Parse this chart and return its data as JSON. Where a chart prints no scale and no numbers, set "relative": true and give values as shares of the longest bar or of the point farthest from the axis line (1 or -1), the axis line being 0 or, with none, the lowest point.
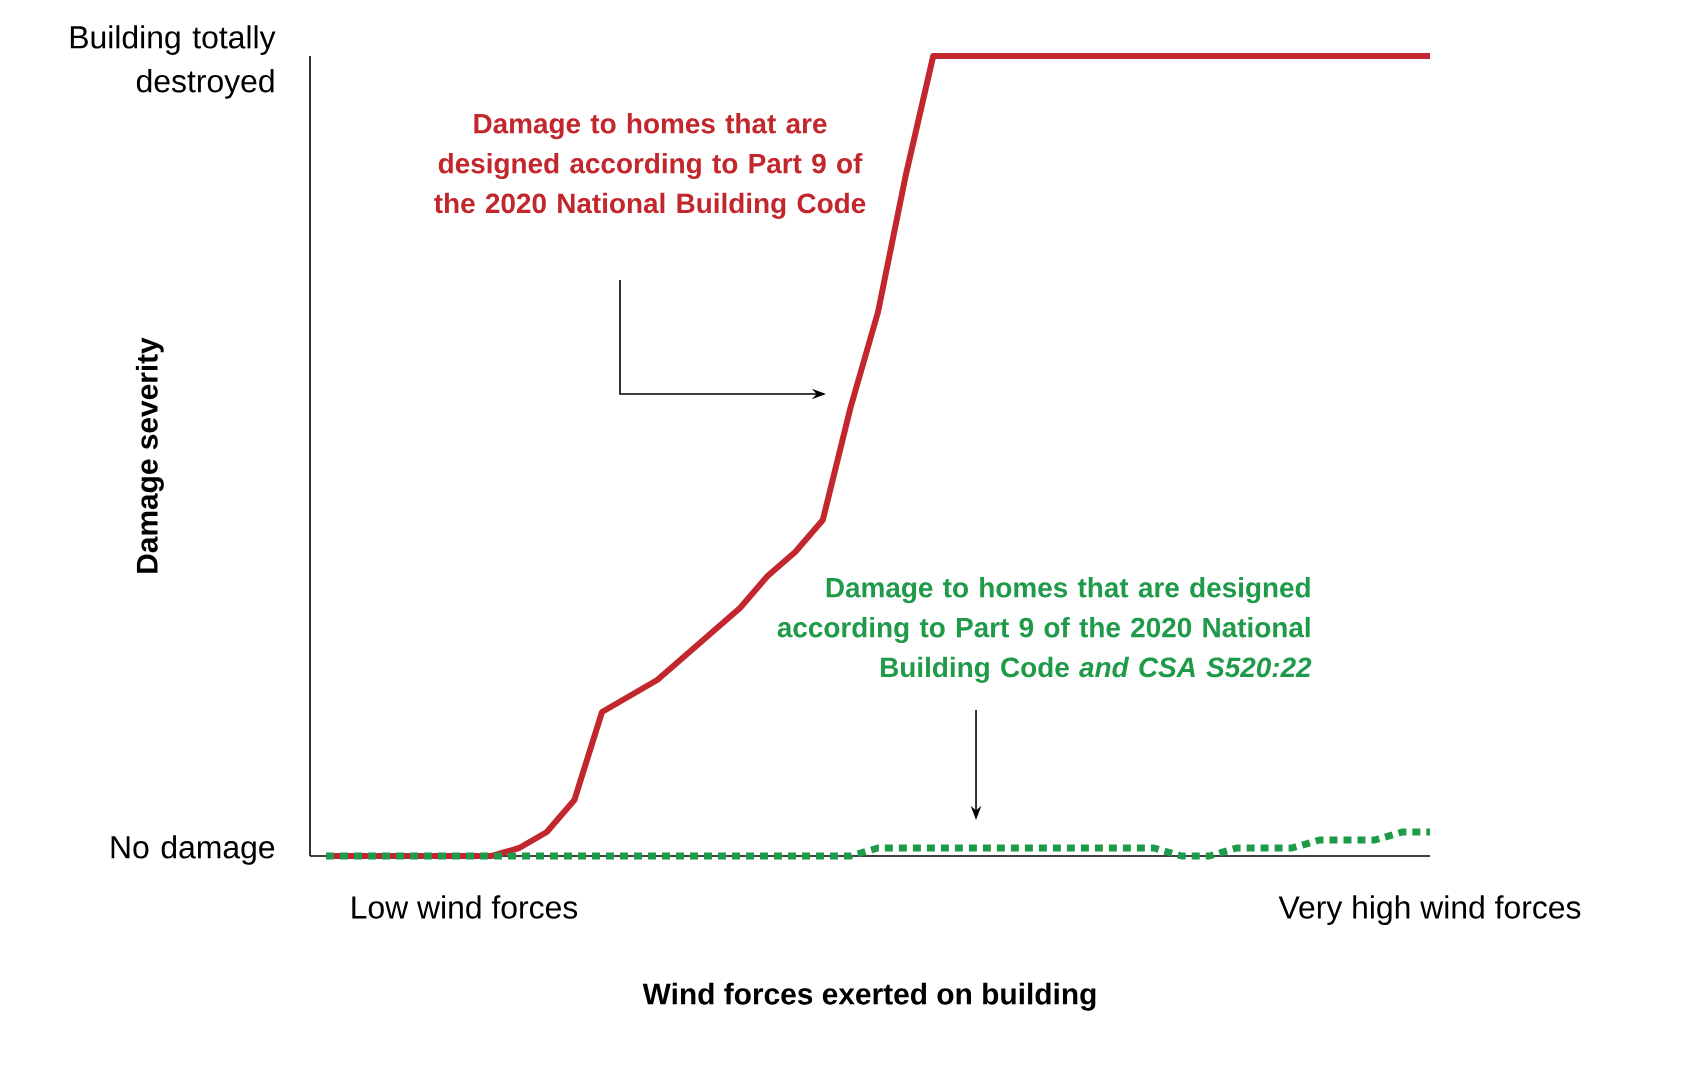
{
  "chart_data": {
    "type": "line",
    "relative": true,
    "xlabel": "Wind forces exerted on building",
    "ylabel": "Damage severity",
    "categories": [
      null,
      null,
      null,
      null,
      null,
      "Low wind forces",
      null,
      null,
      null,
      null,
      null,
      null,
      null,
      null,
      null,
      null,
      null,
      null,
      null,
      null,
      null,
      null,
      null,
      null,
      null,
      null,
      null,
      null,
      null,
      null,
      null,
      null,
      null,
      null,
      null,
      null,
      null,
      null,
      null,
      null,
      "Very high wind forces"
    ],
    "grid": false,
    "marker": "none",
    "series": [
      {
        "color": "#c1272d",
        "line_style": "solid",
        "values": [
          0,
          0,
          0,
          0,
          0,
          0,
          0,
          0.01,
          0.03,
          0.07,
          0.18,
          0.2,
          0.22,
          0.25,
          0.28,
          0.31,
          0.35,
          0.38,
          0.42,
          0.56,
          0.68,
          0.85,
          1,
          1,
          1,
          1,
          1,
          1,
          1,
          1,
          1,
          1,
          1,
          1,
          1,
          1,
          1,
          1,
          1,
          1,
          1
        ]
      },
      {
        "color": "#1f9a48",
        "line_style": "dotted",
        "values": [
          0,
          0,
          0,
          0,
          0,
          0,
          0,
          0,
          0,
          0,
          0,
          0,
          0,
          0,
          0,
          0,
          0,
          0,
          0,
          0,
          0.01,
          0.01,
          0.01,
          0.01,
          0.01,
          0.01,
          0.01,
          0.01,
          0.01,
          0.01,
          0.01,
          0,
          0,
          0.01,
          0.01,
          0.01,
          0.02,
          0.02,
          0.02,
          0.03,
          0.03
        ]
      }
    ],
    "annotations": [
      "Damage to homes that are designed according to Part 9 of the 2020 National Building Code",
      "Damage to homes that are designed according to Part 9 of the 2020 National Building Code *and CSA S520:22*",
      "No damage",
      "Building totally destroyed"
    ]
  }
}
